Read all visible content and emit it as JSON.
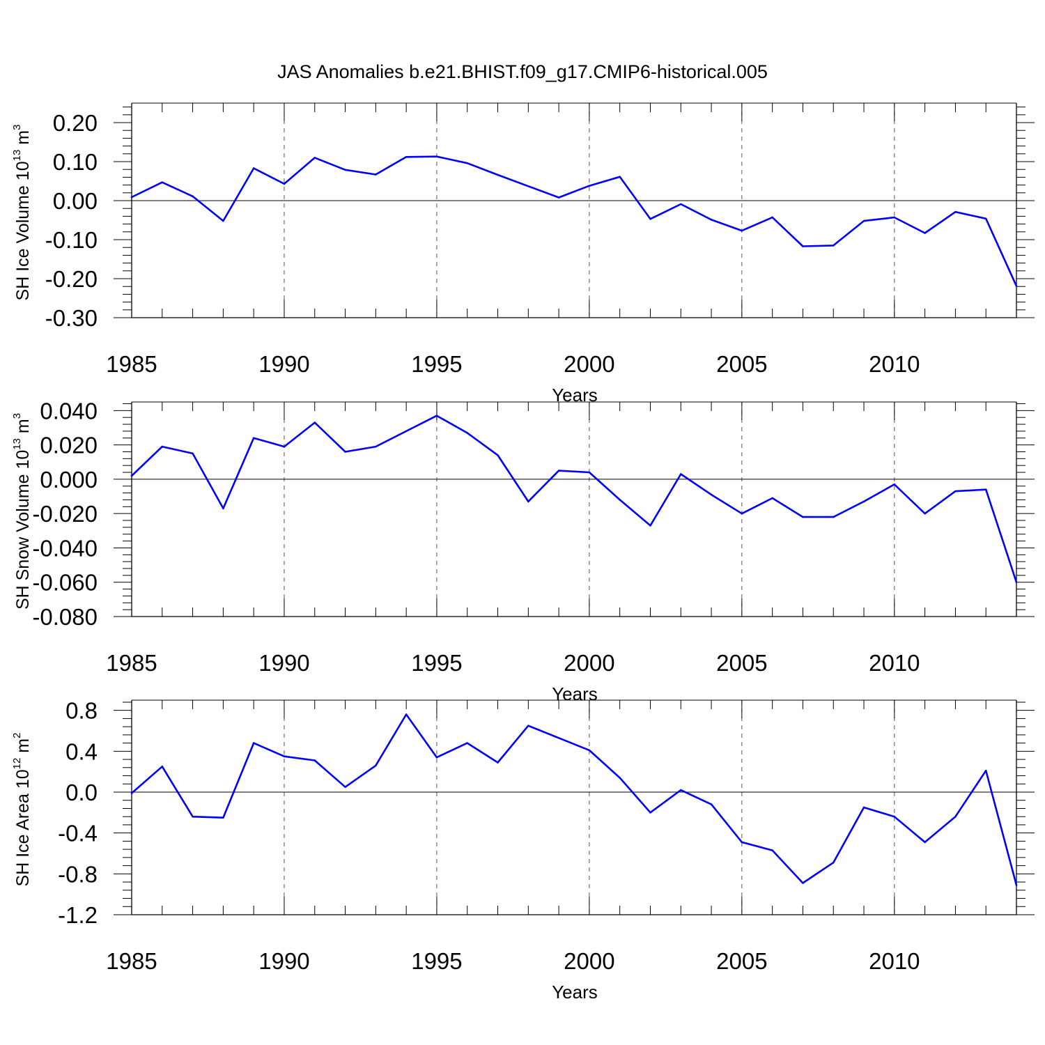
{
  "title": "JAS Anomalies b.e21.BHIST.f09_g17.CMIP6-historical.005",
  "colors": {
    "line": "#0000ff",
    "axis": "#000000",
    "grid": "#555555"
  },
  "chart_data": [
    {
      "type": "line",
      "ylabel_main": "SH Ice Volume 10",
      "ylabel_exp": "13",
      "ylabel_unit": " m",
      "ylabel_unit_exp": "3",
      "xlabel": "Years",
      "xlim": [
        1985,
        2014
      ],
      "ylim": [
        -0.3,
        0.25
      ],
      "yticks": [
        0.2,
        0.1,
        0.0,
        -0.1,
        -0.2,
        -0.3
      ],
      "ytick_labels": [
        "0.20",
        "0.10",
        "0.00",
        "-0.10",
        "-0.20",
        "-0.30"
      ],
      "xticks": [
        1985,
        1990,
        1995,
        2000,
        2005,
        2010
      ],
      "xtick_labels": [
        "1985",
        "1990",
        "1995",
        "2000",
        "2005",
        "2010"
      ],
      "series": [
        {
          "name": "SH Ice Volume",
          "x": [
            1985,
            1986,
            1987,
            1988,
            1989,
            1990,
            1991,
            1992,
            1993,
            1994,
            1995,
            1996,
            1997,
            1998,
            1999,
            2000,
            2001,
            2002,
            2003,
            2004,
            2005,
            2006,
            2007,
            2008,
            2009,
            2010,
            2011,
            2012,
            2013,
            2014
          ],
          "values": [
            0.009,
            0.047,
            0.011,
            -0.052,
            0.083,
            0.043,
            0.11,
            0.079,
            0.067,
            0.112,
            0.113,
            0.096,
            0.066,
            0.037,
            0.008,
            0.038,
            0.061,
            -0.047,
            -0.009,
            -0.049,
            -0.077,
            -0.043,
            -0.117,
            -0.115,
            -0.052,
            -0.043,
            -0.083,
            -0.029,
            -0.046,
            -0.219
          ]
        }
      ]
    },
    {
      "type": "line",
      "ylabel_main": "SH Snow Volume 10",
      "ylabel_exp": "13",
      "ylabel_unit": " m",
      "ylabel_unit_exp": "3",
      "xlabel": "Years",
      "xlim": [
        1985,
        2014
      ],
      "ylim": [
        -0.08,
        0.045
      ],
      "yticks": [
        0.04,
        0.02,
        0.0,
        -0.02,
        -0.04,
        -0.06,
        -0.08
      ],
      "ytick_labels": [
        "0.040",
        "0.020",
        "0.000",
        "-0.020",
        "-0.040",
        "-0.060",
        "-0.080"
      ],
      "xticks": [
        1985,
        1990,
        1995,
        2000,
        2005,
        2010
      ],
      "xtick_labels": [
        "1985",
        "1990",
        "1995",
        "2000",
        "2005",
        "2010"
      ],
      "series": [
        {
          "name": "SH Snow Volume",
          "x": [
            1985,
            1986,
            1987,
            1988,
            1989,
            1990,
            1991,
            1992,
            1993,
            1994,
            1995,
            1996,
            1997,
            1998,
            1999,
            2000,
            2001,
            2002,
            2003,
            2004,
            2005,
            2006,
            2007,
            2008,
            2009,
            2010,
            2011,
            2012,
            2013,
            2014
          ],
          "values": [
            0.002,
            0.019,
            0.015,
            -0.017,
            0.024,
            0.019,
            0.033,
            0.016,
            0.019,
            0.028,
            0.037,
            0.027,
            0.014,
            -0.013,
            0.005,
            0.004,
            -0.012,
            -0.027,
            0.003,
            -0.009,
            -0.02,
            -0.011,
            -0.022,
            -0.022,
            -0.013,
            -0.003,
            -0.02,
            -0.007,
            -0.006,
            -0.06
          ]
        }
      ]
    },
    {
      "type": "line",
      "ylabel_main": "SH Ice Area 10",
      "ylabel_exp": "12",
      "ylabel_unit": " m",
      "ylabel_unit_exp": "2",
      "xlabel": "Years",
      "xlim": [
        1985,
        2014
      ],
      "ylim": [
        -1.2,
        0.9
      ],
      "yticks": [
        0.8,
        0.4,
        0.0,
        -0.4,
        -0.8,
        -1.2
      ],
      "ytick_labels": [
        "0.8",
        "0.4",
        "0.0",
        "-0.4",
        "-0.8",
        "-1.2"
      ],
      "xticks": [
        1985,
        1990,
        1995,
        2000,
        2005,
        2010
      ],
      "xtick_labels": [
        "1985",
        "1990",
        "1995",
        "2000",
        "2005",
        "2010"
      ],
      "series": [
        {
          "name": "SH Ice Area",
          "x": [
            1985,
            1986,
            1987,
            1988,
            1989,
            1990,
            1991,
            1992,
            1993,
            1994,
            1995,
            1996,
            1997,
            1998,
            1999,
            2000,
            2001,
            2002,
            2003,
            2004,
            2005,
            2006,
            2007,
            2008,
            2009,
            2010,
            2011,
            2012,
            2013,
            2014
          ],
          "values": [
            -0.01,
            0.25,
            -0.24,
            -0.25,
            0.48,
            0.35,
            0.31,
            0.05,
            0.26,
            0.76,
            0.34,
            0.48,
            0.29,
            0.65,
            0.53,
            0.41,
            0.14,
            -0.2,
            0.02,
            -0.12,
            -0.49,
            -0.57,
            -0.89,
            -0.69,
            -0.15,
            -0.24,
            -0.49,
            -0.24,
            0.21,
            -0.91
          ]
        }
      ]
    }
  ]
}
